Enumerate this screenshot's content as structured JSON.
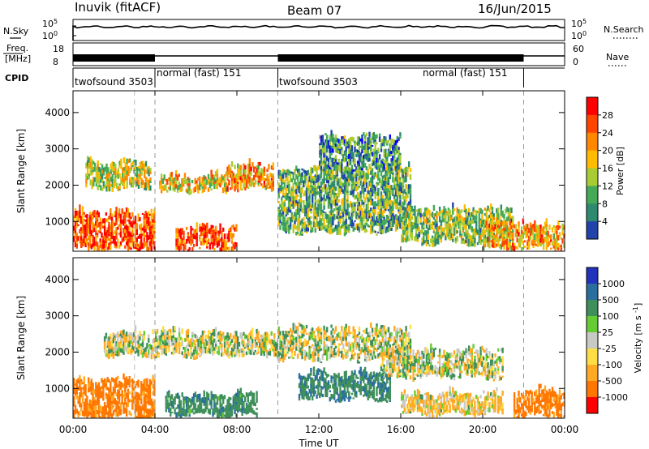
{
  "header": {
    "station": "Inuvik (fitACF)",
    "beam": "Beam 07",
    "date": "16/Jun/2015"
  },
  "status_panels": {
    "nsky_label": "N.Sky",
    "nsky_ticks": [
      "10^5",
      "10^0"
    ],
    "nsearch_label": "N.Search",
    "nsearch_ticks": [
      "10^5",
      "10^0"
    ],
    "freq_label": "Freq.",
    "freq_unit": "[MHz]",
    "freq_ticks": [
      "18",
      "8"
    ],
    "nave_label": "Nave",
    "nave_ticks": [
      "60",
      "0"
    ],
    "cpid_label": "CPID",
    "cpid_segments": [
      {
        "start_hour": 0,
        "end_hour": 4,
        "label": "twofsound 3503"
      },
      {
        "start_hour": 4,
        "end_hour": 10,
        "label": "normal (fast) 151"
      },
      {
        "start_hour": 10,
        "end_hour": 22,
        "label": "twofsound 3503"
      },
      {
        "start_hour": 16.5,
        "end_hour": 22,
        "label": "normal (fast) 151"
      }
    ]
  },
  "chart_data": [
    {
      "type": "heatmap",
      "parameter": "Power",
      "xlabel": "",
      "ylabel": "Slant Range [km]",
      "xlim_hours": [
        0,
        24
      ],
      "ylim_km": [
        180,
        4600
      ],
      "yticks": [
        1000,
        2000,
        3000,
        4000
      ],
      "colorbar_label": "Power [dB]",
      "colorbar_ticks": [
        "28",
        "24",
        "20",
        "16",
        "12",
        "8",
        "4"
      ],
      "colorbar_colors": [
        "#ff0000",
        "#ff4400",
        "#ff8800",
        "#ffbb00",
        "#aacc33",
        "#44aa55",
        "#2e8a6e",
        "#2244aa",
        "#0000ff"
      ],
      "echo_regions": [
        {
          "t0": 0.0,
          "t1": 4.0,
          "r0": 200,
          "r1": 1200,
          "level": 26
        },
        {
          "t0": 0.6,
          "t1": 3.8,
          "r0": 1900,
          "r1": 2600,
          "level": 18
        },
        {
          "t0": 4.2,
          "t1": 7.5,
          "r0": 1800,
          "r1": 2200,
          "level": 20
        },
        {
          "t0": 5.0,
          "t1": 8.0,
          "r0": 250,
          "r1": 800,
          "level": 27
        },
        {
          "t0": 7.5,
          "t1": 9.8,
          "r0": 1900,
          "r1": 2500,
          "level": 22
        },
        {
          "t0": 10.0,
          "t1": 16.5,
          "r0": 700,
          "r1": 2400,
          "level": 14
        },
        {
          "t0": 12.0,
          "t1": 16.0,
          "r0": 2400,
          "r1": 3300,
          "level": 12
        },
        {
          "t0": 16.0,
          "t1": 21.5,
          "r0": 400,
          "r1": 1300,
          "level": 16
        },
        {
          "t0": 20.0,
          "t1": 24.0,
          "r0": 250,
          "r1": 900,
          "level": 22
        }
      ]
    },
    {
      "type": "heatmap",
      "parameter": "Velocity",
      "xlabel": "Time UT",
      "ylabel": "Slant Range [km]",
      "xlim_hours": [
        0,
        24
      ],
      "ylim_km": [
        180,
        4600
      ],
      "yticks": [
        1000,
        2000,
        3000,
        4000
      ],
      "xticks": [
        "00:00",
        "04:00",
        "08:00",
        "12:00",
        "16:00",
        "20:00",
        "00:00"
      ],
      "colorbar_label": "Velocity [m s^-1]",
      "colorbar_ticks": [
        "1000",
        "500",
        "100",
        "25",
        "-25",
        "-100",
        "-500",
        "-1000"
      ],
      "colorbar_colors": [
        "#2233bb",
        "#2a6e9e",
        "#3e8f5a",
        "#66cc33",
        "#c8c8c4",
        "#ffdd44",
        "#ffaa22",
        "#ff7700",
        "#ff0000"
      ],
      "echo_regions": [
        {
          "t0": 0.0,
          "t1": 4.0,
          "r0": 200,
          "r1": 1200,
          "value": -400
        },
        {
          "t0": 1.5,
          "t1": 10.0,
          "r0": 1900,
          "r1": 2500,
          "value": 0
        },
        {
          "t0": 4.5,
          "t1": 9.0,
          "r0": 250,
          "r1": 800,
          "value": 200
        },
        {
          "t0": 10.0,
          "t1": 16.5,
          "r0": 1800,
          "r1": 2600,
          "value": 0
        },
        {
          "t0": 11.0,
          "t1": 15.5,
          "r0": 700,
          "r1": 1400,
          "value": 250
        },
        {
          "t0": 15.0,
          "t1": 21.0,
          "r0": 1300,
          "r1": 2000,
          "value": 0
        },
        {
          "t0": 16.0,
          "t1": 21.0,
          "r0": 300,
          "r1": 800,
          "value": -80
        },
        {
          "t0": 21.5,
          "t1": 24.0,
          "r0": 250,
          "r1": 900,
          "value": -400
        }
      ]
    }
  ]
}
